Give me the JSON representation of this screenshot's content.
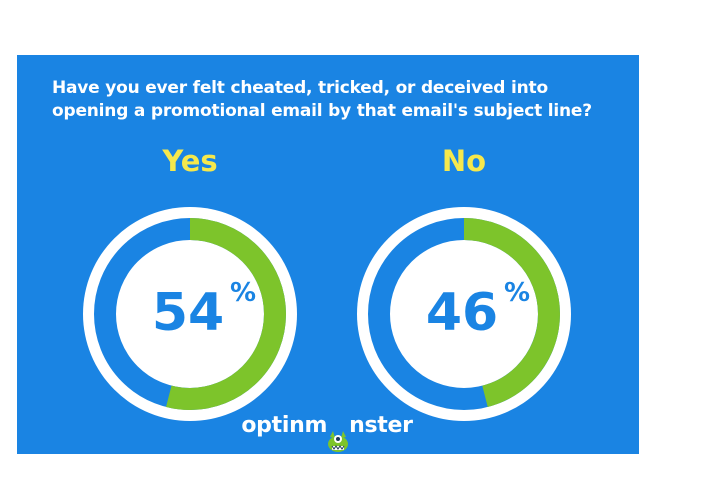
{
  "chart_data": {
    "type": "pie",
    "title_lines": [
      "Have you ever felt cheated, tricked, or deceived into",
      "opening a promotional email by that email's subject line?"
    ],
    "categories": [
      "Yes",
      "No"
    ],
    "values": [
      54,
      46
    ],
    "value_labels": [
      "54",
      "46"
    ],
    "unit": "%"
  },
  "brand": {
    "left": "optinm",
    "right": "nster"
  },
  "colors": {
    "background": "#1a84e3",
    "ring_track": "#ffffff",
    "ring_remainder": "#1a84e3",
    "ring_value": "#7dc42b",
    "answer_label": "#f6e84c",
    "text": "#ffffff"
  }
}
